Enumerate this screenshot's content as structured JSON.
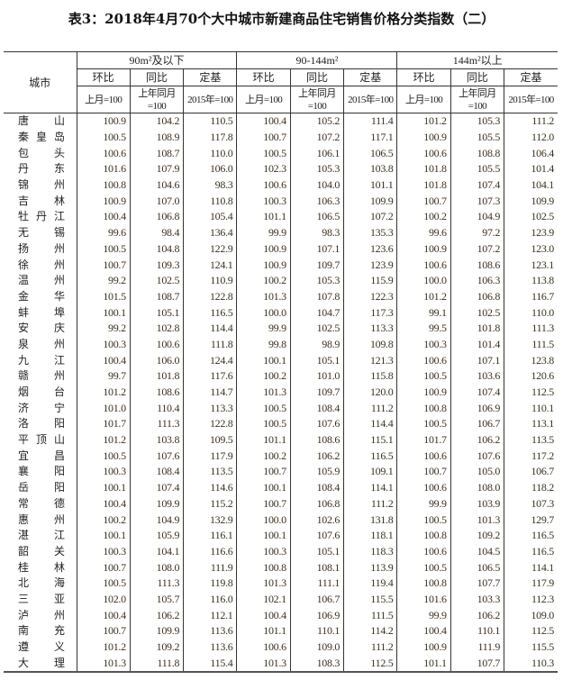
{
  "title": "表3：2018年4月70个大中城市新建商品住宅销售价格分类指数（二）",
  "header": {
    "city": "城市",
    "groups": [
      "90m²及以下",
      "90-144m²",
      "144m²以上"
    ],
    "sub": [
      "环比",
      "同比",
      "定基"
    ],
    "units": [
      "上月=100",
      "上年同月=100",
      "2015年=100"
    ]
  },
  "rows": [
    {
      "city": "唐山",
      "values": [
        "100.9",
        "104.2",
        "110.5",
        "100.4",
        "105.2",
        "111.4",
        "101.2",
        "105.3",
        "111.2"
      ]
    },
    {
      "city": "秦皇岛",
      "values": [
        "100.5",
        "108.9",
        "117.8",
        "100.7",
        "107.2",
        "117.1",
        "100.9",
        "105.5",
        "112.0"
      ]
    },
    {
      "city": "包头",
      "values": [
        "100.6",
        "108.7",
        "110.0",
        "100.5",
        "106.1",
        "106.5",
        "100.6",
        "108.8",
        "106.4"
      ]
    },
    {
      "city": "丹东",
      "values": [
        "101.6",
        "107.9",
        "106.0",
        "102.3",
        "105.3",
        "103.8",
        "101.8",
        "105.5",
        "101.4"
      ]
    },
    {
      "city": "锦州",
      "values": [
        "100.8",
        "104.6",
        "98.3",
        "100.6",
        "104.0",
        "101.1",
        "101.8",
        "107.4",
        "104.1"
      ]
    },
    {
      "city": "吉林",
      "values": [
        "100.9",
        "107.0",
        "110.8",
        "100.3",
        "106.3",
        "109.9",
        "100.7",
        "107.3",
        "109.9"
      ]
    },
    {
      "city": "牡丹江",
      "values": [
        "100.4",
        "106.8",
        "105.4",
        "101.1",
        "106.5",
        "107.2",
        "100.2",
        "104.9",
        "102.5"
      ]
    },
    {
      "city": "无锡",
      "values": [
        "99.6",
        "98.4",
        "136.4",
        "99.9",
        "98.3",
        "135.3",
        "99.6",
        "97.2",
        "123.9"
      ]
    },
    {
      "city": "扬州",
      "values": [
        "100.5",
        "104.8",
        "122.9",
        "100.9",
        "107.1",
        "123.6",
        "100.9",
        "107.2",
        "123.0"
      ]
    },
    {
      "city": "徐州",
      "values": [
        "100.7",
        "109.3",
        "124.1",
        "100.9",
        "109.7",
        "123.9",
        "100.6",
        "108.6",
        "123.1"
      ]
    },
    {
      "city": "温州",
      "values": [
        "99.2",
        "102.5",
        "110.9",
        "100.2",
        "105.3",
        "115.9",
        "100.0",
        "106.3",
        "113.8"
      ]
    },
    {
      "city": "金华",
      "values": [
        "101.5",
        "108.7",
        "122.8",
        "101.3",
        "107.8",
        "122.3",
        "101.2",
        "106.8",
        "116.7"
      ]
    },
    {
      "city": "蚌埠",
      "values": [
        "100.1",
        "105.1",
        "116.5",
        "100.0",
        "104.7",
        "117.3",
        "99.1",
        "102.5",
        "110.0"
      ]
    },
    {
      "city": "安庆",
      "values": [
        "99.2",
        "102.8",
        "114.4",
        "99.9",
        "102.5",
        "113.3",
        "99.5",
        "101.8",
        "111.3"
      ]
    },
    {
      "city": "泉州",
      "values": [
        "100.3",
        "100.6",
        "111.8",
        "99.8",
        "98.9",
        "109.8",
        "100.3",
        "101.4",
        "111.5"
      ]
    },
    {
      "city": "九江",
      "values": [
        "100.4",
        "106.0",
        "124.4",
        "100.1",
        "105.1",
        "121.3",
        "100.6",
        "107.1",
        "123.8"
      ]
    },
    {
      "city": "赣州",
      "values": [
        "99.7",
        "101.8",
        "117.6",
        "100.2",
        "101.0",
        "115.8",
        "100.5",
        "103.6",
        "120.6"
      ]
    },
    {
      "city": "烟台",
      "values": [
        "101.2",
        "108.6",
        "114.7",
        "101.3",
        "109.7",
        "120.0",
        "100.9",
        "107.4",
        "112.5"
      ]
    },
    {
      "city": "济宁",
      "values": [
        "101.0",
        "110.4",
        "113.3",
        "100.5",
        "108.4",
        "111.2",
        "100.8",
        "106.9",
        "110.1"
      ]
    },
    {
      "city": "洛阳",
      "values": [
        "101.7",
        "111.3",
        "122.8",
        "100.5",
        "107.6",
        "114.4",
        "100.5",
        "106.7",
        "113.1"
      ]
    },
    {
      "city": "平顶山",
      "values": [
        "101.2",
        "103.8",
        "109.5",
        "101.1",
        "108.6",
        "115.1",
        "101.7",
        "106.2",
        "113.5"
      ]
    },
    {
      "city": "宜昌",
      "values": [
        "100.5",
        "107.6",
        "117.9",
        "100.2",
        "106.2",
        "116.5",
        "100.6",
        "107.6",
        "117.2"
      ]
    },
    {
      "city": "襄阳",
      "values": [
        "100.3",
        "108.4",
        "113.5",
        "100.7",
        "105.9",
        "109.1",
        "100.7",
        "105.0",
        "106.7"
      ]
    },
    {
      "city": "岳阳",
      "values": [
        "100.1",
        "107.4",
        "114.6",
        "100.1",
        "108.4",
        "114.1",
        "100.6",
        "108.0",
        "118.2"
      ]
    },
    {
      "city": "常德",
      "values": [
        "100.4",
        "109.9",
        "115.2",
        "100.7",
        "106.8",
        "111.2",
        "99.9",
        "103.9",
        "107.3"
      ]
    },
    {
      "city": "惠州",
      "values": [
        "100.2",
        "104.9",
        "132.9",
        "100.0",
        "102.6",
        "131.8",
        "100.5",
        "101.3",
        "129.7"
      ]
    },
    {
      "city": "湛江",
      "values": [
        "100.1",
        "105.9",
        "116.1",
        "100.1",
        "107.6",
        "118.1",
        "100.8",
        "109.2",
        "116.5"
      ]
    },
    {
      "city": "韶关",
      "values": [
        "100.3",
        "104.1",
        "116.6",
        "100.3",
        "105.1",
        "118.3",
        "100.6",
        "104.5",
        "116.5"
      ]
    },
    {
      "city": "桂林",
      "values": [
        "100.7",
        "108.0",
        "111.9",
        "100.8",
        "108.1",
        "113.9",
        "100.5",
        "106.5",
        "114.1"
      ]
    },
    {
      "city": "北海",
      "values": [
        "100.5",
        "111.3",
        "119.8",
        "101.3",
        "111.1",
        "119.4",
        "100.8",
        "107.7",
        "117.9"
      ]
    },
    {
      "city": "三亚",
      "values": [
        "102.0",
        "105.7",
        "116.0",
        "102.1",
        "106.7",
        "115.5",
        "101.6",
        "103.3",
        "112.3"
      ]
    },
    {
      "city": "泸州",
      "values": [
        "100.4",
        "106.2",
        "112.1",
        "100.4",
        "106.9",
        "111.5",
        "99.9",
        "106.2",
        "109.0"
      ]
    },
    {
      "city": "南充",
      "values": [
        "100.7",
        "109.9",
        "113.6",
        "101.1",
        "110.1",
        "114.2",
        "100.4",
        "110.1",
        "112.5"
      ]
    },
    {
      "city": "遵义",
      "values": [
        "101.2",
        "109.2",
        "113.6",
        "100.6",
        "109.0",
        "111.2",
        "100.9",
        "111.9",
        "115.5"
      ]
    },
    {
      "city": "大理",
      "values": [
        "101.3",
        "111.8",
        "115.4",
        "101.3",
        "108.3",
        "112.5",
        "101.1",
        "107.7",
        "110.3"
      ]
    }
  ]
}
